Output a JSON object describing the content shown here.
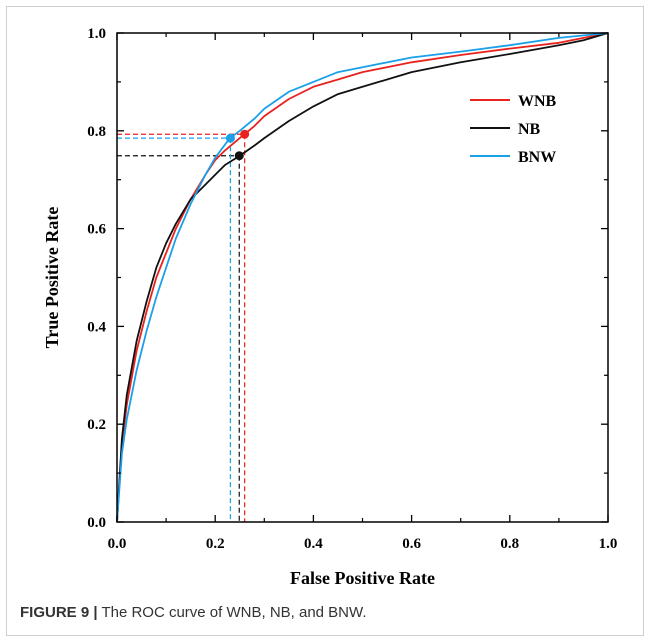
{
  "caption": {
    "figure_label": "FIGURE 9 |",
    "text": " The ROC curve of WNB, NB, and BNW."
  },
  "chart_data": {
    "type": "line",
    "title": "",
    "xlabel": "False Positive Rate",
    "ylabel": "True Positive Rate",
    "xlim": [
      0,
      1
    ],
    "ylim": [
      0,
      1
    ],
    "xticks": [
      "0.0",
      "0.2",
      "0.4",
      "0.6",
      "0.8",
      "1.0"
    ],
    "yticks": [
      "0.0",
      "0.2",
      "0.4",
      "0.6",
      "0.8",
      "1.0"
    ],
    "grid": false,
    "legend_position": "top-right",
    "series": [
      {
        "name": "WNB",
        "color": "#e8231f",
        "x": [
          0,
          0.01,
          0.02,
          0.04,
          0.06,
          0.08,
          0.1,
          0.12,
          0.15,
          0.18,
          0.2,
          0.22,
          0.25,
          0.26,
          0.28,
          0.3,
          0.35,
          0.4,
          0.45,
          0.5,
          0.6,
          0.7,
          0.8,
          0.9,
          0.95,
          1.0
        ],
        "y": [
          0,
          0.16,
          0.24,
          0.35,
          0.43,
          0.5,
          0.55,
          0.6,
          0.66,
          0.71,
          0.74,
          0.76,
          0.785,
          0.793,
          0.81,
          0.83,
          0.865,
          0.89,
          0.905,
          0.92,
          0.94,
          0.955,
          0.968,
          0.98,
          0.99,
          1.0
        ],
        "operating_point": {
          "x": 0.26,
          "y": 0.793
        }
      },
      {
        "name": "NB",
        "color": "#111111",
        "x": [
          0,
          0.01,
          0.02,
          0.04,
          0.06,
          0.08,
          0.1,
          0.12,
          0.15,
          0.18,
          0.2,
          0.22,
          0.25,
          0.28,
          0.3,
          0.35,
          0.4,
          0.45,
          0.5,
          0.6,
          0.7,
          0.8,
          0.9,
          0.95,
          1.0
        ],
        "y": [
          0,
          0.17,
          0.26,
          0.37,
          0.45,
          0.52,
          0.57,
          0.61,
          0.66,
          0.69,
          0.71,
          0.73,
          0.749,
          0.77,
          0.785,
          0.82,
          0.85,
          0.875,
          0.89,
          0.92,
          0.94,
          0.957,
          0.975,
          0.985,
          1.0
        ],
        "operating_point": {
          "x": 0.249,
          "y": 0.749
        }
      },
      {
        "name": "BNW",
        "color": "#1aa0e8",
        "x": [
          0,
          0.01,
          0.02,
          0.04,
          0.06,
          0.08,
          0.1,
          0.12,
          0.15,
          0.18,
          0.2,
          0.23,
          0.25,
          0.28,
          0.3,
          0.35,
          0.4,
          0.45,
          0.5,
          0.6,
          0.7,
          0.8,
          0.9,
          0.95,
          1.0
        ],
        "y": [
          0,
          0.14,
          0.21,
          0.31,
          0.39,
          0.46,
          0.52,
          0.58,
          0.65,
          0.71,
          0.745,
          0.785,
          0.8,
          0.825,
          0.845,
          0.88,
          0.9,
          0.92,
          0.93,
          0.95,
          0.962,
          0.975,
          0.99,
          0.995,
          1.0
        ],
        "operating_point": {
          "x": 0.231,
          "y": 0.785
        }
      }
    ]
  }
}
